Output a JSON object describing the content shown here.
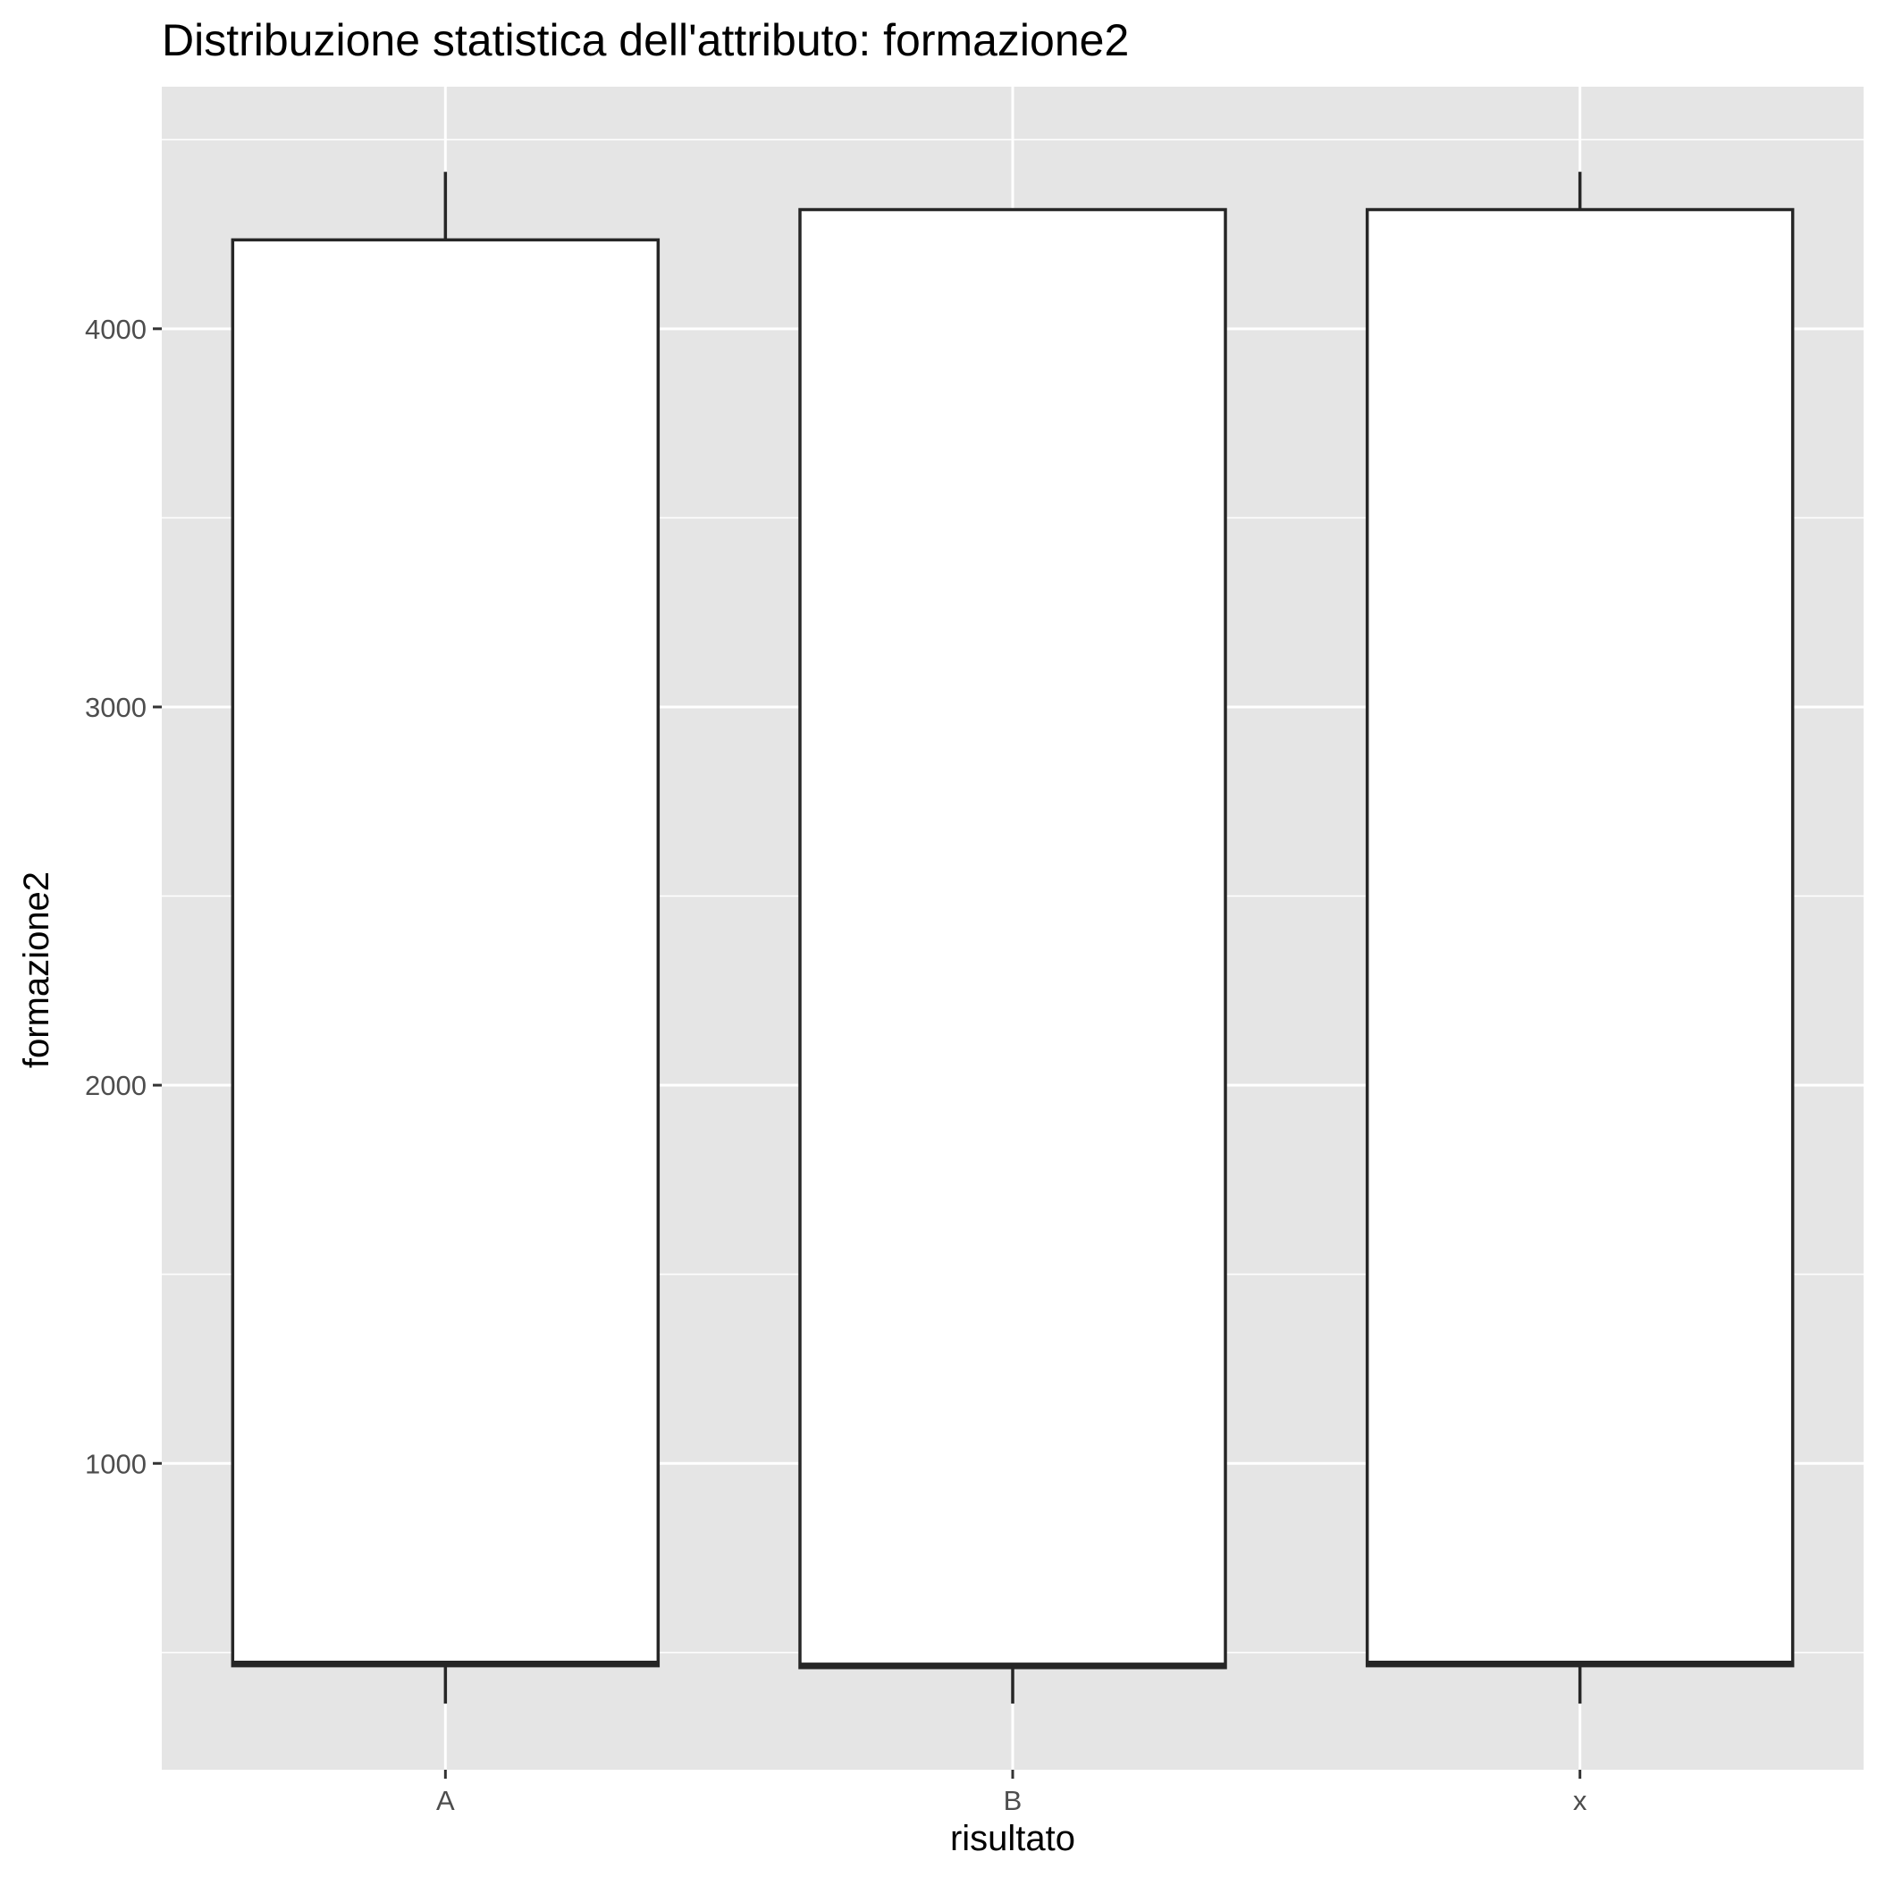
{
  "chart_data": {
    "type": "boxplot",
    "title": "Distribuzione statistica dell'attributo: formazione2",
    "xlabel": "risultato",
    "ylabel": "formazione2",
    "categories": [
      "A",
      "B",
      "x"
    ],
    "boxes": [
      {
        "category": "A",
        "whisker_low": 365,
        "q1": 465,
        "median": 470,
        "q3": 4235,
        "whisker_high": 4415
      },
      {
        "category": "B",
        "whisker_low": 365,
        "q1": 460,
        "median": 465,
        "q3": 4315,
        "whisker_high": 4315
      },
      {
        "category": "x",
        "whisker_low": 365,
        "q1": 465,
        "median": 470,
        "q3": 4315,
        "whisker_high": 4415
      }
    ],
    "ylim": [
      190,
      4640
    ],
    "yticks": [
      1000,
      2000,
      3000,
      4000
    ],
    "ytick_labels": [
      "1000",
      "2000",
      "3000",
      "4000"
    ],
    "grid": true,
    "legend": "none",
    "colors": {
      "panel_background": "#e5e5e5",
      "grid": "#ffffff",
      "box_fill": "#ffffff",
      "box_stroke": "#262626",
      "tick_text": "#4d4d4d",
      "tick_mark": "#333333"
    }
  }
}
